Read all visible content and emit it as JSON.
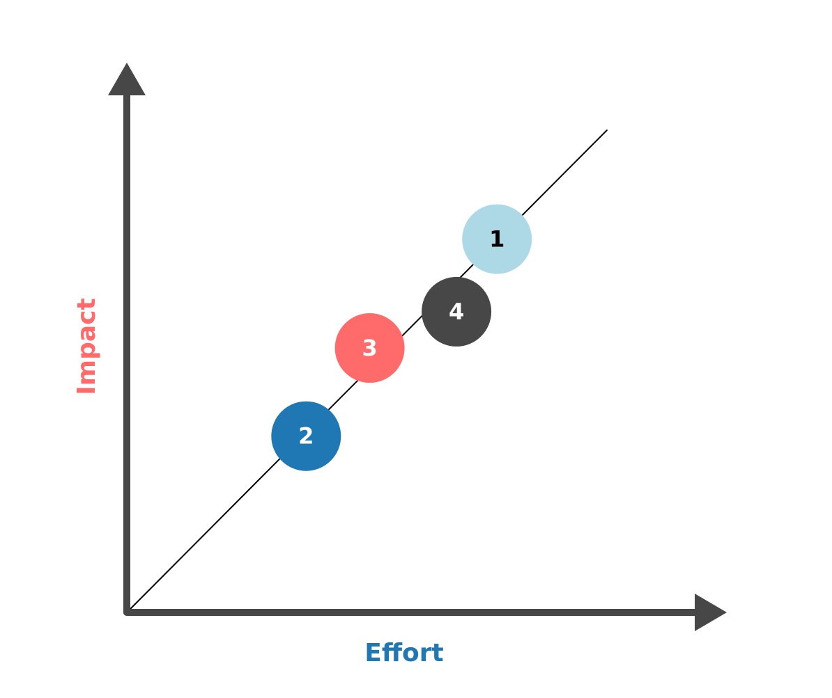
{
  "chart_data": {
    "type": "scatter",
    "xlabel": "Effort",
    "ylabel": "Impact",
    "xlim": [
      0,
      1
    ],
    "ylim": [
      0,
      1
    ],
    "grid": false,
    "trend_line": {
      "from": [
        0,
        0
      ],
      "to": [
        0.83,
        0.93
      ]
    },
    "points": [
      {
        "label": "1",
        "x": 0.64,
        "y": 0.72,
        "color": "#add8e6",
        "text_color": "#000000"
      },
      {
        "label": "2",
        "x": 0.31,
        "y": 0.34,
        "color": "#1f77b4",
        "text_color": "#ffffff"
      },
      {
        "label": "3",
        "x": 0.42,
        "y": 0.51,
        "color": "#ff6b6b",
        "text_color": "#ffffff"
      },
      {
        "label": "4",
        "x": 0.57,
        "y": 0.58,
        "color": "#474747",
        "text_color": "#ffffff"
      }
    ],
    "colors": {
      "axis": "#474747",
      "trend_line": "#000000",
      "xlabel": "#1f77b4",
      "ylabel": "#ff6b6b"
    }
  }
}
